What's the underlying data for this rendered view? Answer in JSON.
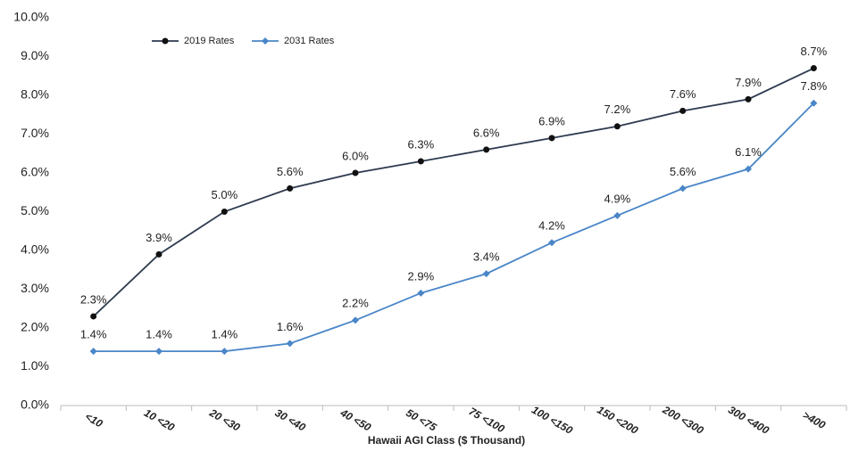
{
  "chart_data": {
    "type": "line",
    "x_label": "Hawaii AGI Class ($ Thousand)",
    "categories": [
      "<10",
      "10 <20",
      "20 <30",
      "30 <40",
      "40 <50",
      "50 <75",
      "75 <100",
      "100 <150",
      "150 <200",
      "200 <300",
      "300 <400",
      ">400"
    ],
    "series": [
      {
        "name": "2019 Rates",
        "color": "#2e3a4f",
        "marker": "circle",
        "values": [
          2.3,
          3.9,
          5.0,
          5.6,
          6.0,
          6.3,
          6.6,
          6.9,
          7.2,
          7.6,
          7.9,
          8.7
        ],
        "value_labels": [
          "2.3%",
          "3.9%",
          "5.0%",
          "5.6%",
          "6.0%",
          "6.3%",
          "6.6%",
          "6.9%",
          "7.2%",
          "7.6%",
          "7.9%",
          "8.7%"
        ]
      },
      {
        "name": "2031 Rates",
        "color": "#4a86c8",
        "marker": "diamond",
        "values": [
          1.4,
          1.4,
          1.4,
          1.6,
          2.2,
          2.9,
          3.4,
          4.2,
          4.9,
          5.6,
          6.1,
          7.8
        ],
        "value_labels": [
          "1.4%",
          "1.4%",
          "1.4%",
          "1.6%",
          "2.2%",
          "2.9%",
          "3.4%",
          "4.2%",
          "4.9%",
          "5.6%",
          "6.1%",
          "7.8%"
        ]
      }
    ],
    "ylim": [
      0,
      10
    ],
    "yticks": [
      {
        "value": 0,
        "label": "0.0%"
      },
      {
        "value": 1,
        "label": "1.0%"
      },
      {
        "value": 2,
        "label": "2.0%"
      },
      {
        "value": 3,
        "label": "3.0%"
      },
      {
        "value": 4,
        "label": "4.0%"
      },
      {
        "value": 5,
        "label": "5.0%"
      },
      {
        "value": 6,
        "label": "6.0%"
      },
      {
        "value": 7,
        "label": "7.0%"
      },
      {
        "value": 8,
        "label": "8.0%"
      },
      {
        "value": 9,
        "label": "9.0%"
      },
      {
        "value": 10,
        "label": "10.0%"
      }
    ],
    "grid": false,
    "legend": "top-left"
  }
}
